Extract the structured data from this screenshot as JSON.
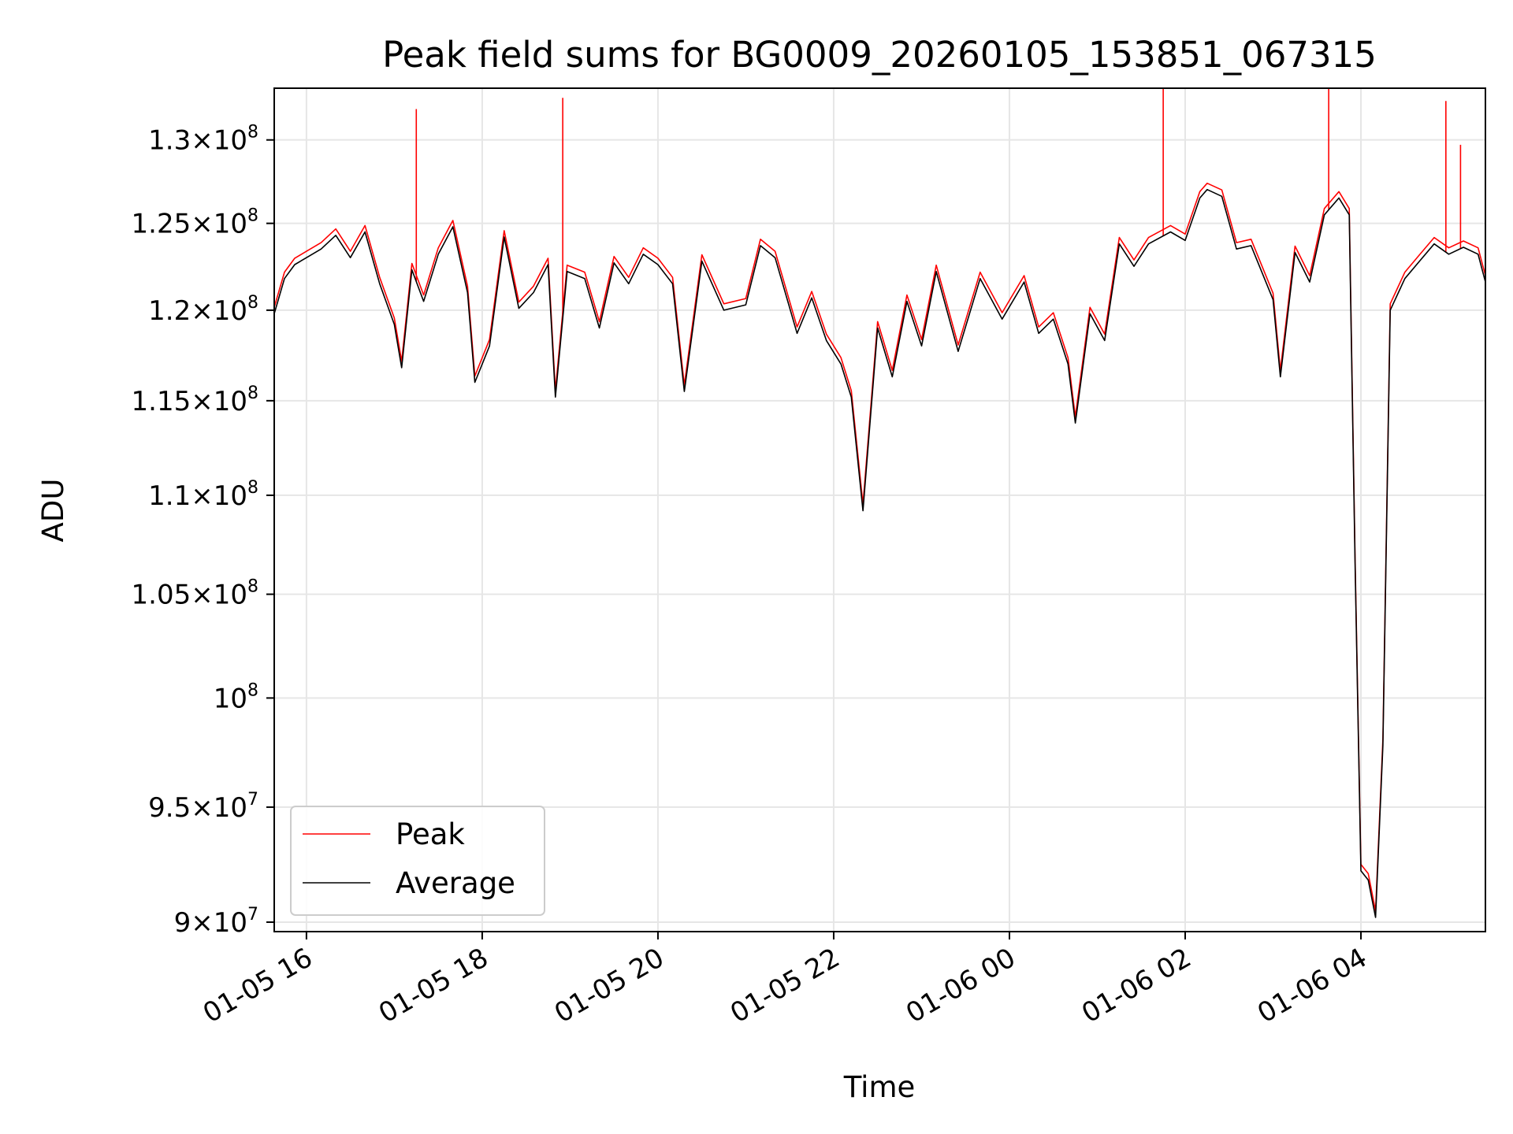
{
  "chart_data": {
    "type": "line",
    "title": "Peak field sums for BG0009_20260105_153851_067315",
    "xlabel": "Time",
    "ylabel": "ADU",
    "y_scale": "log",
    "xlim": [
      "2026-01-05 15:38",
      "2026-01-06 05:25"
    ],
    "ylim": [
      89600000,
      133200000
    ],
    "grid": true,
    "legend_position": "lower-left",
    "x_ticks": [
      {
        "value": "2026-01-05 16:00",
        "label": "01-05 16"
      },
      {
        "value": "2026-01-05 18:00",
        "label": "01-05 18"
      },
      {
        "value": "2026-01-05 20:00",
        "label": "01-05 20"
      },
      {
        "value": "2026-01-05 22:00",
        "label": "01-05 22"
      },
      {
        "value": "2026-01-06 00:00",
        "label": "01-06 00"
      },
      {
        "value": "2026-01-06 02:00",
        "label": "01-06 02"
      },
      {
        "value": "2026-01-06 04:00",
        "label": "01-06 04"
      }
    ],
    "y_ticks": [
      {
        "value": 90000000,
        "mantissa": "9",
        "exponent": "7"
      },
      {
        "value": 95000000,
        "mantissa": "9.5",
        "exponent": "7"
      },
      {
        "value": 100000000,
        "mantissa": "",
        "exponent": "8"
      },
      {
        "value": 105000000,
        "mantissa": "1.05",
        "exponent": "8"
      },
      {
        "value": 110000000,
        "mantissa": "1.1",
        "exponent": "8"
      },
      {
        "value": 115000000,
        "mantissa": "1.15",
        "exponent": "8"
      },
      {
        "value": 120000000,
        "mantissa": "1.2",
        "exponent": "8"
      },
      {
        "value": 125000000,
        "mantissa": "1.25",
        "exponent": "8"
      },
      {
        "value": 130000000,
        "mantissa": "1.3",
        "exponent": "8"
      }
    ],
    "series": [
      {
        "name": "Average",
        "color": "#000000",
        "points": [
          [
            "2026-01-05 15:38",
            119800000
          ],
          [
            "2026-01-05 15:45",
            121800000
          ],
          [
            "2026-01-05 15:52",
            122600000
          ],
          [
            "2026-01-05 16:00",
            123000000
          ],
          [
            "2026-01-05 16:10",
            123500000
          ],
          [
            "2026-01-05 16:20",
            124300000
          ],
          [
            "2026-01-05 16:30",
            123000000
          ],
          [
            "2026-01-05 16:40",
            124500000
          ],
          [
            "2026-01-05 16:50",
            121500000
          ],
          [
            "2026-01-05 17:00",
            119200000
          ],
          [
            "2026-01-05 17:05",
            116800000
          ],
          [
            "2026-01-05 17:12",
            122300000
          ],
          [
            "2026-01-05 17:20",
            120500000
          ],
          [
            "2026-01-05 17:30",
            123200000
          ],
          [
            "2026-01-05 17:40",
            124800000
          ],
          [
            "2026-01-05 17:50",
            121000000
          ],
          [
            "2026-01-05 17:55",
            116000000
          ],
          [
            "2026-01-05 18:05",
            118000000
          ],
          [
            "2026-01-05 18:15",
            124200000
          ],
          [
            "2026-01-05 18:25",
            120100000
          ],
          [
            "2026-01-05 18:35",
            121000000
          ],
          [
            "2026-01-05 18:45",
            122600000
          ],
          [
            "2026-01-05 18:50",
            115200000
          ],
          [
            "2026-01-05 18:58",
            122200000
          ],
          [
            "2026-01-05 19:10",
            121800000
          ],
          [
            "2026-01-05 19:20",
            119000000
          ],
          [
            "2026-01-05 19:30",
            122700000
          ],
          [
            "2026-01-05 19:40",
            121500000
          ],
          [
            "2026-01-05 19:50",
            123200000
          ],
          [
            "2026-01-05 20:00",
            122600000
          ],
          [
            "2026-01-05 20:10",
            121500000
          ],
          [
            "2026-01-05 20:18",
            115500000
          ],
          [
            "2026-01-05 20:30",
            122800000
          ],
          [
            "2026-01-05 20:45",
            120000000
          ],
          [
            "2026-01-05 21:00",
            120300000
          ],
          [
            "2026-01-05 21:10",
            123700000
          ],
          [
            "2026-01-05 21:20",
            123000000
          ],
          [
            "2026-01-05 21:35",
            118700000
          ],
          [
            "2026-01-05 21:45",
            120700000
          ],
          [
            "2026-01-05 21:55",
            118300000
          ],
          [
            "2026-01-05 22:05",
            117000000
          ],
          [
            "2026-01-05 22:12",
            115200000
          ],
          [
            "2026-01-05 22:20",
            109200000
          ],
          [
            "2026-01-05 22:30",
            119000000
          ],
          [
            "2026-01-05 22:40",
            116300000
          ],
          [
            "2026-01-05 22:50",
            120500000
          ],
          [
            "2026-01-05 23:00",
            118000000
          ],
          [
            "2026-01-05 23:10",
            122200000
          ],
          [
            "2026-01-05 23:25",
            117700000
          ],
          [
            "2026-01-05 23:40",
            121800000
          ],
          [
            "2026-01-05 23:55",
            119500000
          ],
          [
            "2026-01-06 00:10",
            121600000
          ],
          [
            "2026-01-06 00:20",
            118700000
          ],
          [
            "2026-01-06 00:30",
            119500000
          ],
          [
            "2026-01-06 00:40",
            117000000
          ],
          [
            "2026-01-06 00:45",
            113800000
          ],
          [
            "2026-01-06 00:55",
            119800000
          ],
          [
            "2026-01-06 01:05",
            118300000
          ],
          [
            "2026-01-06 01:15",
            123800000
          ],
          [
            "2026-01-06 01:25",
            122500000
          ],
          [
            "2026-01-06 01:35",
            123800000
          ],
          [
            "2026-01-06 01:50",
            124500000
          ],
          [
            "2026-01-06 02:00",
            124000000
          ],
          [
            "2026-01-06 02:10",
            126500000
          ],
          [
            "2026-01-06 02:15",
            127000000
          ],
          [
            "2026-01-06 02:25",
            126600000
          ],
          [
            "2026-01-06 02:35",
            123500000
          ],
          [
            "2026-01-06 02:45",
            123700000
          ],
          [
            "2026-01-06 03:00",
            120600000
          ],
          [
            "2026-01-06 03:05",
            116300000
          ],
          [
            "2026-01-06 03:15",
            123300000
          ],
          [
            "2026-01-06 03:25",
            121600000
          ],
          [
            "2026-01-06 03:35",
            125500000
          ],
          [
            "2026-01-06 03:45",
            126500000
          ],
          [
            "2026-01-06 03:52",
            125500000
          ],
          [
            "2026-01-06 03:56",
            106500000
          ],
          [
            "2026-01-06 04:00",
            92200000
          ],
          [
            "2026-01-06 04:05",
            91800000
          ],
          [
            "2026-01-06 04:10",
            90200000
          ],
          [
            "2026-01-06 04:15",
            97800000
          ],
          [
            "2026-01-06 04:20",
            120000000
          ],
          [
            "2026-01-06 04:30",
            121800000
          ],
          [
            "2026-01-06 04:40",
            122800000
          ],
          [
            "2026-01-06 04:50",
            123800000
          ],
          [
            "2026-01-06 05:00",
            123200000
          ],
          [
            "2026-01-06 05:10",
            123600000
          ],
          [
            "2026-01-06 05:20",
            123200000
          ],
          [
            "2026-01-06 05:25",
            121600000
          ]
        ]
      },
      {
        "name": "Peak",
        "color": "#ff0000",
        "spikes": [
          [
            "2026-01-05 17:15",
            131900000
          ],
          [
            "2026-01-05 18:55",
            132600000
          ],
          [
            "2026-01-06 01:45",
            133200000
          ],
          [
            "2026-01-06 03:38",
            133200000
          ],
          [
            "2026-01-06 04:58",
            132400000
          ],
          [
            "2026-01-06 05:08",
            129700000
          ]
        ]
      }
    ]
  }
}
